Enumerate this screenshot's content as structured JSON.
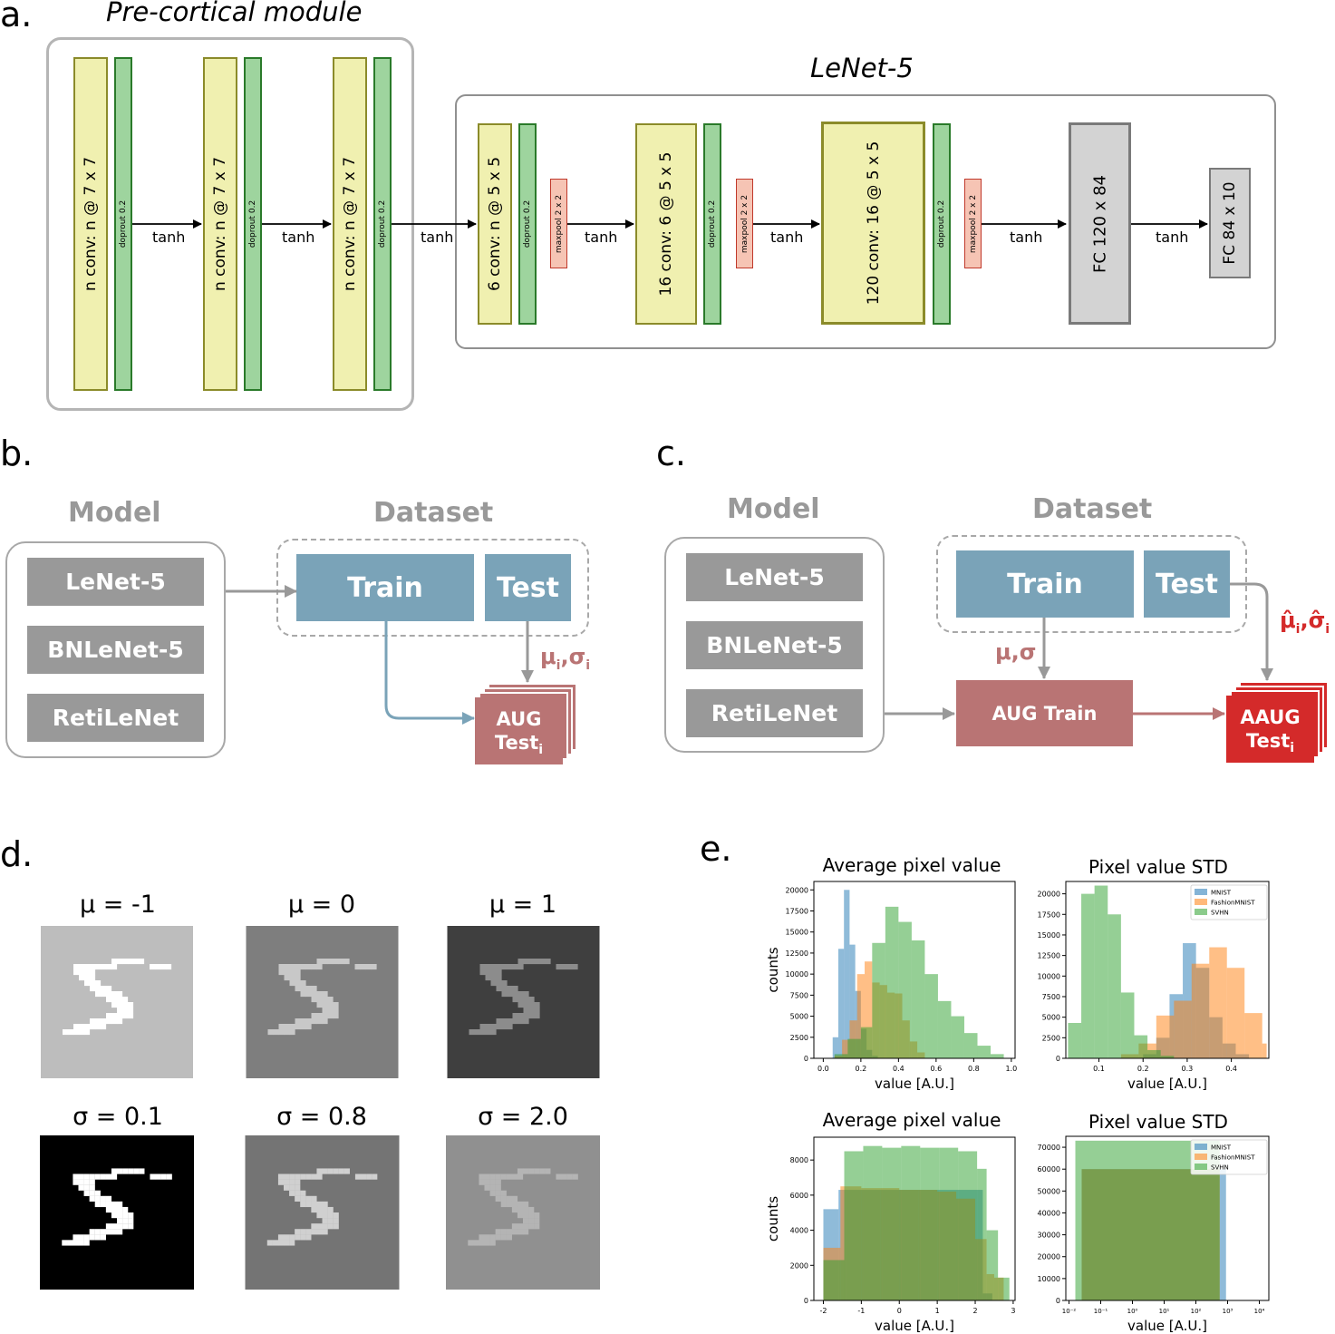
{
  "panels": {
    "a": "a.",
    "b": "b.",
    "c": "c.",
    "d": "d.",
    "e": "e."
  },
  "panel_a": {
    "precortical_title": "Pre-cortical module",
    "lenet_title": "LeNet-5",
    "pre_conv": "n conv: n @ 7 x 7",
    "dropout": "doprout 0.2",
    "maxpool": "maxpool 2 x 2",
    "tanh": "tanh",
    "lenet_conv1": "6 conv: n @ 5 x 5",
    "lenet_conv2": "16 conv: 6 @ 5 x 5",
    "lenet_conv3": "120 conv: 16 @ 5 x 5",
    "fc1": "FC 120 x 84",
    "fc2": "FC 84 x 10",
    "colors": {
      "conv_fill": "#f0f0b0",
      "dropout_fill": "#9ed49e",
      "pool_fill": "#f6c4b4",
      "fc_fill": "#d3d3d3"
    }
  },
  "panel_b": {
    "model_header": "Model",
    "dataset_header": "Dataset",
    "models": [
      "LeNet-5",
      "BNLeNet-5",
      "RetiLeNet"
    ],
    "train": "Train",
    "test": "Test",
    "stats": "μi,σi",
    "aug_line1": "AUG",
    "aug_line2": "Test",
    "aug_sub": "i",
    "colors": {
      "aug": "#b97474",
      "blue": "#7aa3b8",
      "gray": "#999999"
    }
  },
  "panel_c": {
    "model_header": "Model",
    "dataset_header": "Dataset",
    "models": [
      "LeNet-5",
      "BNLeNet-5",
      "RetiLeNet"
    ],
    "train": "Train",
    "test": "Test",
    "stats": "μ,σ",
    "hat_stats": "μ̂i,σ̂i",
    "aug_train": "AUG Train",
    "aaug_line1": "AAUG",
    "aaug_line2": "Test",
    "aaug_sub": "i",
    "colors": {
      "aaug": "#d42a2a"
    }
  },
  "panel_d": {
    "titles": [
      "μ = -1",
      "μ = 0",
      "μ = 1",
      "σ = 0.1",
      "σ = 0.8",
      "σ = 2.0"
    ],
    "backgrounds": [
      "#bdbdbd",
      "#7e7e7e",
      "#3f3f3f",
      "#000000",
      "#747474",
      "#909090"
    ],
    "strokes": [
      "#ffffff",
      "#c8c8c8",
      "#8c8c8c",
      "#ffffff",
      "#d0d0d0",
      "#b4b4b4"
    ]
  },
  "panel_e": {
    "titles": [
      "Average pixel value",
      "Pixel value STD",
      "Average pixel value",
      "Pixel value STD"
    ],
    "ylabel": "counts",
    "xlabel": "value [A.U.]",
    "legend": [
      "MNIST",
      "FashionMNIST",
      "SVHN"
    ],
    "colors": {
      "MNIST": "#1f77b4",
      "FashionMNIST": "#ff7f0e",
      "SVHN": "#2ca02c"
    }
  },
  "chart_data": [
    {
      "type": "bar",
      "title": "Average pixel value",
      "xlabel": "value [A.U.]",
      "ylabel": "counts",
      "xlim": [
        -0.05,
        1.02
      ],
      "ylim": [
        0,
        21000
      ],
      "xticks": [
        "0.0",
        "0.2",
        "0.4",
        "0.6",
        "0.8",
        "1.0"
      ],
      "yticks": [
        "0",
        "2500",
        "5000",
        "7500",
        "10000",
        "12500",
        "15000",
        "17500",
        "20000"
      ],
      "series": [
        {
          "name": "MNIST",
          "bins": [
            [
              0.05,
              0.08,
              2500
            ],
            [
              0.08,
              0.11,
              13000
            ],
            [
              0.11,
              0.14,
              20000
            ],
            [
              0.14,
              0.17,
              13500
            ],
            [
              0.17,
              0.2,
              8000
            ],
            [
              0.2,
              0.23,
              3500
            ],
            [
              0.23,
              0.26,
              1000
            ],
            [
              0.26,
              0.29,
              300
            ]
          ]
        },
        {
          "name": "FashionMNIST",
          "bins": [
            [
              0.06,
              0.1,
              300
            ],
            [
              0.1,
              0.14,
              2200
            ],
            [
              0.14,
              0.18,
              4500
            ],
            [
              0.18,
              0.22,
              10000
            ],
            [
              0.22,
              0.26,
              11500
            ],
            [
              0.26,
              0.3,
              9000
            ],
            [
              0.3,
              0.34,
              8700
            ],
            [
              0.34,
              0.38,
              7800
            ],
            [
              0.38,
              0.42,
              7700
            ],
            [
              0.42,
              0.46,
              4500
            ],
            [
              0.46,
              0.5,
              2000
            ],
            [
              0.5,
              0.54,
              700
            ]
          ]
        },
        {
          "name": "SVHN",
          "bins": [
            [
              0.06,
              0.13,
              500
            ],
            [
              0.13,
              0.2,
              2300
            ],
            [
              0.2,
              0.26,
              3700
            ],
            [
              0.26,
              0.33,
              13700
            ],
            [
              0.33,
              0.4,
              18000
            ],
            [
              0.4,
              0.47,
              16200
            ],
            [
              0.47,
              0.54,
              14000
            ],
            [
              0.54,
              0.61,
              10000
            ],
            [
              0.61,
              0.68,
              6800
            ],
            [
              0.68,
              0.75,
              5000
            ],
            [
              0.75,
              0.82,
              3000
            ],
            [
              0.82,
              0.89,
              1500
            ],
            [
              0.89,
              0.96,
              500
            ]
          ]
        }
      ]
    },
    {
      "type": "bar",
      "title": "Pixel value STD",
      "xlabel": "value [A.U.]",
      "xlim": [
        0.025,
        0.485
      ],
      "ylim": [
        0,
        21500
      ],
      "xticks": [
        "0.1",
        "0.2",
        "0.3",
        "0.4"
      ],
      "yticks": [
        "0",
        "2500",
        "5000",
        "7500",
        "10000",
        "12500",
        "15000",
        "17500",
        "20000"
      ],
      "series": [
        {
          "name": "MNIST",
          "bins": [
            [
              0.2,
              0.23,
              500
            ],
            [
              0.23,
              0.26,
              2500
            ],
            [
              0.26,
              0.29,
              7800
            ],
            [
              0.29,
              0.32,
              14000
            ],
            [
              0.32,
              0.35,
              11000
            ],
            [
              0.35,
              0.38,
              5000
            ],
            [
              0.38,
              0.41,
              1800
            ],
            [
              0.41,
              0.44,
              500
            ]
          ]
        },
        {
          "name": "FashionMNIST",
          "bins": [
            [
              0.15,
              0.19,
              500
            ],
            [
              0.19,
              0.23,
              1800
            ],
            [
              0.23,
              0.27,
              5200
            ],
            [
              0.27,
              0.31,
              7000
            ],
            [
              0.31,
              0.35,
              11500
            ],
            [
              0.35,
              0.39,
              13500
            ],
            [
              0.39,
              0.43,
              11000
            ],
            [
              0.43,
              0.47,
              5500
            ],
            [
              0.47,
              0.48,
              1800
            ]
          ]
        },
        {
          "name": "SVHN",
          "bins": [
            [
              0.03,
              0.06,
              4300
            ],
            [
              0.06,
              0.09,
              20000
            ],
            [
              0.09,
              0.12,
              21000
            ],
            [
              0.12,
              0.15,
              17500
            ],
            [
              0.15,
              0.18,
              8000
            ],
            [
              0.18,
              0.21,
              2800
            ],
            [
              0.21,
              0.24,
              1000
            ],
            [
              0.24,
              0.27,
              300
            ]
          ]
        }
      ],
      "legend_position": "top-right"
    },
    {
      "type": "bar",
      "title": "Average pixel value",
      "xlabel": "value [A.U.]",
      "ylabel": "counts",
      "xlim": [
        -2.25,
        3.05
      ],
      "ylim": [
        0,
        9300
      ],
      "xticks": [
        "-2",
        "-1",
        "0",
        "1",
        "2",
        "3"
      ],
      "yticks": [
        "0",
        "2000",
        "4000",
        "6000",
        "8000"
      ],
      "series": [
        {
          "name": "MNIST",
          "bins": [
            [
              -2.0,
              -1.6,
              5200
            ],
            [
              -1.6,
              -1.4,
              6300
            ],
            [
              -1.4,
              2.2,
              6300
            ],
            [
              2.2,
              2.45,
              400
            ]
          ]
        },
        {
          "name": "FashionMNIST",
          "bins": [
            [
              -2.0,
              -1.55,
              3000
            ],
            [
              -1.55,
              -1.0,
              6500
            ],
            [
              -1.0,
              -0.5,
              6400
            ],
            [
              -0.5,
              0.0,
              6400
            ],
            [
              0.0,
              0.5,
              6300
            ],
            [
              0.5,
              1.0,
              6300
            ],
            [
              1.0,
              1.5,
              6200
            ],
            [
              1.5,
              2.0,
              5800
            ],
            [
              2.0,
              2.3,
              3500
            ],
            [
              2.3,
              2.5,
              1500
            ],
            [
              2.5,
              2.75,
              1300
            ]
          ]
        },
        {
          "name": "SVHN",
          "bins": [
            [
              -2.0,
              -1.45,
              2300
            ],
            [
              -1.45,
              -0.95,
              8500
            ],
            [
              -0.95,
              -0.45,
              8800
            ],
            [
              -0.45,
              0.05,
              8700
            ],
            [
              0.05,
              0.55,
              8800
            ],
            [
              0.55,
              1.05,
              8700
            ],
            [
              1.05,
              1.55,
              8700
            ],
            [
              1.55,
              2.05,
              8500
            ],
            [
              2.05,
              2.3,
              7500
            ],
            [
              2.3,
              2.6,
              4000
            ],
            [
              2.6,
              2.9,
              1300
            ]
          ]
        }
      ]
    },
    {
      "type": "bar",
      "title": "Pixel value STD",
      "xlabel": "value [A.U.]",
      "x_scale": "log",
      "xlim_log10": [
        -2.1,
        4.3
      ],
      "ylim": [
        0,
        75000
      ],
      "xticks": [
        "10⁻²",
        "10⁻¹",
        "10⁰",
        "10¹",
        "10²",
        "10³",
        "10⁴"
      ],
      "yticks": [
        "0",
        "10000",
        "20000",
        "30000",
        "40000",
        "50000",
        "60000",
        "70000"
      ],
      "series": [
        {
          "name": "MNIST",
          "bins_log10": [
            [
              -1.6,
              2.95,
              60000
            ]
          ]
        },
        {
          "name": "FashionMNIST",
          "bins_log10": [
            [
              -1.6,
              2.75,
              60000
            ]
          ]
        },
        {
          "name": "SVHN",
          "bins_log10": [
            [
              -1.8,
              2.75,
              73000
            ]
          ]
        }
      ],
      "legend_position": "top-right"
    }
  ]
}
